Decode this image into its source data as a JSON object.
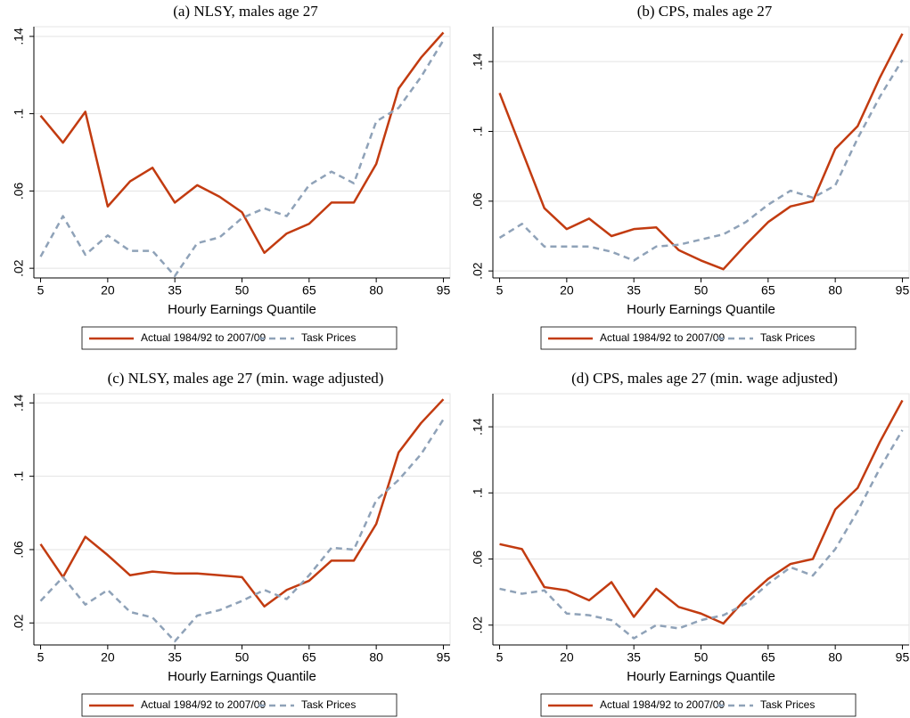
{
  "chart_data": [
    {
      "type": "line",
      "title": "(a) NLSY, males age 27",
      "x_label": "Hourly Earnings Quantile",
      "x": [
        5,
        10,
        15,
        20,
        25,
        30,
        35,
        40,
        45,
        50,
        55,
        60,
        65,
        70,
        75,
        80,
        85,
        90,
        95
      ],
      "series": [
        {
          "name": "Actual 1984/92 to 2007/09",
          "color": "#c23b10",
          "style": "solid",
          "values": [
            0.099,
            0.085,
            0.101,
            0.052,
            0.065,
            0.072,
            0.054,
            0.063,
            0.057,
            0.049,
            0.028,
            0.038,
            0.043,
            0.054,
            0.054,
            0.074,
            0.113,
            0.129,
            0.142
          ]
        },
        {
          "name": "Task Prices",
          "color": "#8fa2b8",
          "style": "dashed",
          "values": [
            0.026,
            0.047,
            0.027,
            0.037,
            0.029,
            0.029,
            0.016,
            0.033,
            0.036,
            0.046,
            0.051,
            0.047,
            0.063,
            0.07,
            0.064,
            0.096,
            0.103,
            0.119,
            0.138
          ]
        }
      ],
      "xlim": [
        3.5,
        96.5
      ],
      "xticks": [
        5,
        20,
        35,
        50,
        65,
        80,
        95
      ],
      "ylim": [
        0.015,
        0.145
      ],
      "yticks": [
        {
          "value": 0.02,
          "label": ".02"
        },
        {
          "value": 0.06,
          "label": ".06"
        },
        {
          "value": 0.1,
          "label": ".1"
        },
        {
          "value": 0.14,
          "label": ".14"
        }
      ],
      "grid": true
    },
    {
      "type": "line",
      "title": "(b) CPS, males age 27",
      "x_label": "Hourly Earnings Quantile",
      "x": [
        5,
        10,
        15,
        20,
        25,
        30,
        35,
        40,
        45,
        50,
        55,
        60,
        65,
        70,
        75,
        80,
        85,
        90,
        95
      ],
      "series": [
        {
          "name": "Actual 1984/92 to 2007/09",
          "color": "#c23b10",
          "style": "solid",
          "values": [
            0.122,
            0.089,
            0.056,
            0.044,
            0.05,
            0.04,
            0.044,
            0.045,
            0.032,
            0.026,
            0.021,
            0.035,
            0.048,
            0.057,
            0.06,
            0.09,
            0.103,
            0.131,
            0.156
          ]
        },
        {
          "name": "Task Prices",
          "color": "#8fa2b8",
          "style": "dashed",
          "values": [
            0.039,
            0.047,
            0.034,
            0.034,
            0.034,
            0.031,
            0.026,
            0.034,
            0.035,
            0.038,
            0.041,
            0.048,
            0.058,
            0.066,
            0.062,
            0.069,
            0.096,
            0.12,
            0.141
          ]
        }
      ],
      "xlim": [
        3.5,
        96.5
      ],
      "xticks": [
        5,
        20,
        35,
        50,
        65,
        80,
        95
      ],
      "ylim": [
        0.016,
        0.16
      ],
      "yticks": [
        {
          "value": 0.02,
          "label": ".02"
        },
        {
          "value": 0.06,
          "label": ".06"
        },
        {
          "value": 0.1,
          "label": ".1"
        },
        {
          "value": 0.14,
          "label": ".14"
        }
      ],
      "grid": true
    },
    {
      "type": "line",
      "title": "(c) NLSY, males age 27 (min. wage adjusted)",
      "x_label": "Hourly Earnings Quantile",
      "x": [
        5,
        10,
        15,
        20,
        25,
        30,
        35,
        40,
        45,
        50,
        55,
        60,
        65,
        70,
        75,
        80,
        85,
        90,
        95
      ],
      "series": [
        {
          "name": "Actual 1984/92 to 2007/09",
          "color": "#c23b10",
          "style": "solid",
          "values": [
            0.063,
            0.045,
            0.067,
            0.057,
            0.046,
            0.048,
            0.047,
            0.047,
            0.046,
            0.045,
            0.029,
            0.038,
            0.043,
            0.054,
            0.054,
            0.074,
            0.113,
            0.129,
            0.142
          ]
        },
        {
          "name": "Task Prices",
          "color": "#8fa2b8",
          "style": "dashed",
          "values": [
            0.032,
            0.045,
            0.03,
            0.038,
            0.026,
            0.023,
            0.01,
            0.024,
            0.027,
            0.032,
            0.038,
            0.033,
            0.046,
            0.061,
            0.06,
            0.087,
            0.098,
            0.112,
            0.131
          ]
        }
      ],
      "xlim": [
        3.5,
        96.5
      ],
      "xticks": [
        5,
        20,
        35,
        50,
        65,
        80,
        95
      ],
      "ylim": [
        0.008,
        0.145
      ],
      "yticks": [
        {
          "value": 0.02,
          "label": ".02"
        },
        {
          "value": 0.06,
          "label": ".06"
        },
        {
          "value": 0.1,
          "label": ".1"
        },
        {
          "value": 0.14,
          "label": ".14"
        }
      ],
      "grid": true
    },
    {
      "type": "line",
      "title": "(d) CPS, males age 27 (min. wage adjusted)",
      "x_label": "Hourly Earnings Quantile",
      "x": [
        5,
        10,
        15,
        20,
        25,
        30,
        35,
        40,
        45,
        50,
        55,
        60,
        65,
        70,
        75,
        80,
        85,
        90,
        95
      ],
      "series": [
        {
          "name": "Actual 1984/92 to 2007/09",
          "color": "#c23b10",
          "style": "solid",
          "values": [
            0.069,
            0.066,
            0.043,
            0.041,
            0.035,
            0.046,
            0.025,
            0.042,
            0.031,
            0.027,
            0.021,
            0.036,
            0.048,
            0.057,
            0.06,
            0.09,
            0.103,
            0.131,
            0.156
          ]
        },
        {
          "name": "Task Prices",
          "color": "#8fa2b8",
          "style": "dashed",
          "values": [
            0.042,
            0.039,
            0.041,
            0.027,
            0.026,
            0.023,
            0.012,
            0.02,
            0.018,
            0.023,
            0.026,
            0.033,
            0.045,
            0.055,
            0.05,
            0.066,
            0.089,
            0.115,
            0.138
          ]
        }
      ],
      "xlim": [
        3.5,
        96.5
      ],
      "xticks": [
        5,
        20,
        35,
        50,
        65,
        80,
        95
      ],
      "ylim": [
        0.008,
        0.16
      ],
      "yticks": [
        {
          "value": 0.02,
          "label": ".02"
        },
        {
          "value": 0.06,
          "label": ".06"
        },
        {
          "value": 0.1,
          "label": ".1"
        },
        {
          "value": 0.14,
          "label": ".14"
        }
      ],
      "grid": true
    }
  ]
}
